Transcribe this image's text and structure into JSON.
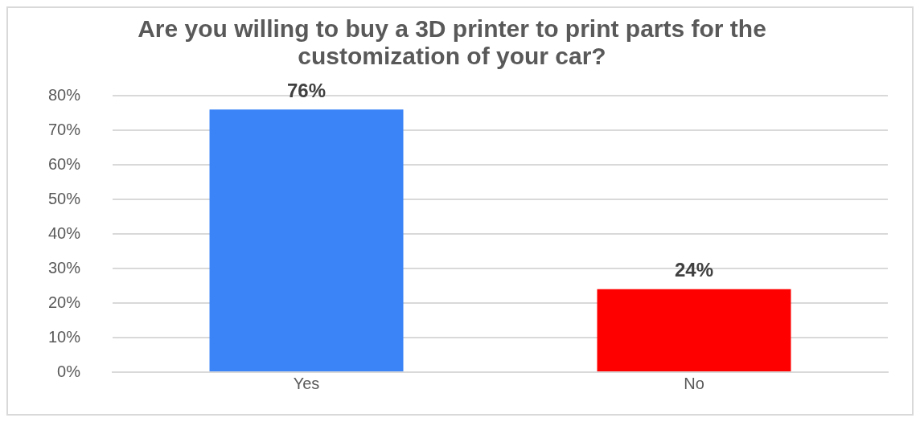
{
  "chart_data": {
    "type": "bar",
    "title": "Are you willing to buy a 3D printer to print parts for the customization of your car?",
    "categories": [
      "Yes",
      "No"
    ],
    "values": [
      76,
      24
    ],
    "colors": [
      "#3a84f8",
      "#ff0000"
    ],
    "value_labels": [
      "76%",
      "24%"
    ],
    "ylim": [
      0,
      80
    ],
    "yticks": [
      {
        "value": 0,
        "label": "0%"
      },
      {
        "value": 10,
        "label": "10%"
      },
      {
        "value": 20,
        "label": "20%"
      },
      {
        "value": 30,
        "label": "30%"
      },
      {
        "value": 40,
        "label": "40%"
      },
      {
        "value": 50,
        "label": "50%"
      },
      {
        "value": 60,
        "label": "60%"
      },
      {
        "value": 70,
        "label": "70%"
      },
      {
        "value": 80,
        "label": "80%"
      }
    ],
    "grid": "y",
    "legend": false
  }
}
